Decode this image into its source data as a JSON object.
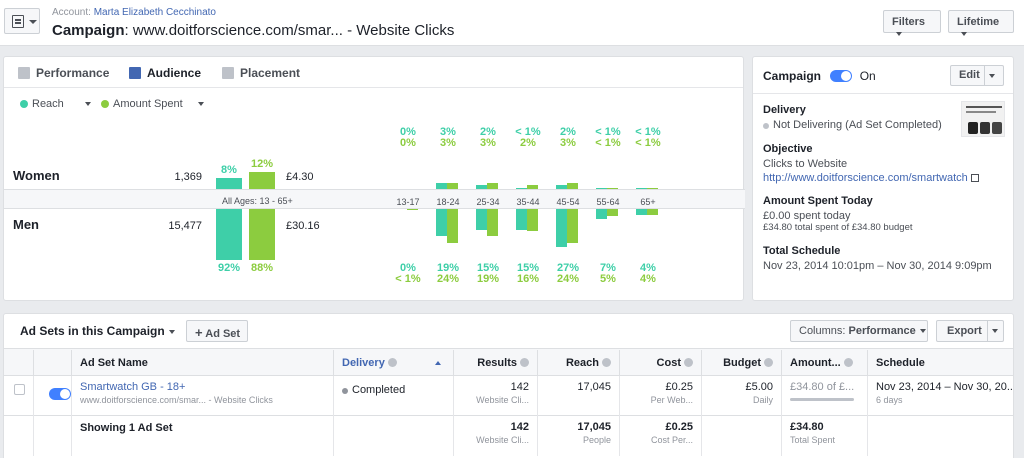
{
  "header": {
    "account_label": "Account:",
    "account_name": "Marta Elizabeth Cecchinato",
    "campaign_label": "Campaign",
    "campaign_name": ": www.doitforscience.com/smar... - Website Clicks",
    "filters_label": "Filters",
    "lifetime_label": "Lifetime"
  },
  "tabs": [
    {
      "label": "Performance"
    },
    {
      "label": "Audience"
    },
    {
      "label": "Placement"
    }
  ],
  "legend": {
    "metric1": "Reach",
    "metric2": "Amount Spent",
    "metric1_color": "#3ecfa8",
    "metric2_color": "#8ccc3f"
  },
  "audience": {
    "women": {
      "label": "Women",
      "reach": "1,369",
      "spent": "£4.30",
      "reach_pct": "8%",
      "spent_pct": "12%"
    },
    "men": {
      "label": "Men",
      "reach": "15,477",
      "spent": "£30.16",
      "reach_pct": "92%",
      "spent_pct": "88%"
    },
    "all_ages_label": "All Ages: 13 - 65+",
    "age_groups": [
      {
        "label": "13-17",
        "women_reach": "0%",
        "women_spent": "0%",
        "men_reach": "0%",
        "men_spent": "< 1%"
      },
      {
        "label": "18-24",
        "women_reach": "3%",
        "women_spent": "3%",
        "men_reach": "19%",
        "men_spent": "24%"
      },
      {
        "label": "25-34",
        "women_reach": "2%",
        "women_spent": "3%",
        "men_reach": "15%",
        "men_spent": "19%"
      },
      {
        "label": "35-44",
        "women_reach": "< 1%",
        "women_spent": "2%",
        "men_reach": "15%",
        "men_spent": "16%"
      },
      {
        "label": "45-54",
        "women_reach": "2%",
        "women_spent": "3%",
        "men_reach": "27%",
        "men_spent": "24%"
      },
      {
        "label": "55-64",
        "women_reach": "< 1%",
        "women_spent": "< 1%",
        "men_reach": "7%",
        "men_spent": "5%"
      },
      {
        "label": "65+",
        "women_reach": "< 1%",
        "women_spent": "< 1%",
        "men_reach": "4%",
        "men_spent": "4%"
      }
    ]
  },
  "right_panel": {
    "campaign_label": "Campaign",
    "campaign_state": "On",
    "edit_label": "Edit",
    "delivery_title": "Delivery",
    "delivery_status": "Not Delivering",
    "delivery_detail": "(Ad Set Completed)",
    "objective_title": "Objective",
    "objective_value": "Clicks to Website",
    "objective_url": "http://www.doitforscience.com/smartwatch",
    "amount_title": "Amount Spent Today",
    "amount_value": "£0.00 spent today",
    "amount_budget": "£34.80 total spent of £34.80 budget",
    "schedule_title": "Total Schedule",
    "schedule_value": "Nov 23, 2014 10:01pm – Nov 30, 2014 9:09pm"
  },
  "adsets": {
    "title": "Ad Sets in this Campaign",
    "add_label": "Ad Set",
    "columns_label": "Columns:",
    "columns_value": "Performance",
    "export_label": "Export",
    "columns": [
      "Ad Set Name",
      "Delivery",
      "Results",
      "Reach",
      "Cost",
      "Budget",
      "Amount...",
      "Schedule"
    ],
    "rows": [
      {
        "name": "Smartwatch GB - 18+",
        "sub": "www.doitforscience.com/smar... - Website Clicks",
        "delivery": "Completed",
        "results": "142",
        "results_sub": "Website Cli...",
        "reach": "17,045",
        "cost": "£0.25",
        "cost_sub": "Per Web...",
        "budget": "£5.00",
        "budget_sub": "Daily",
        "amount": "£34.80 of £...",
        "schedule": "Nov 23, 2014 – Nov 30, 20...",
        "schedule_sub": "6 days"
      }
    ],
    "summary": {
      "label": "Showing 1 Ad Set",
      "results": "142",
      "results_sub": "Website Cli...",
      "reach": "17,045",
      "reach_sub": "People",
      "cost": "£0.25",
      "cost_sub": "Cost Per...",
      "amount": "£34.80",
      "amount_sub": "Total Spent"
    }
  }
}
